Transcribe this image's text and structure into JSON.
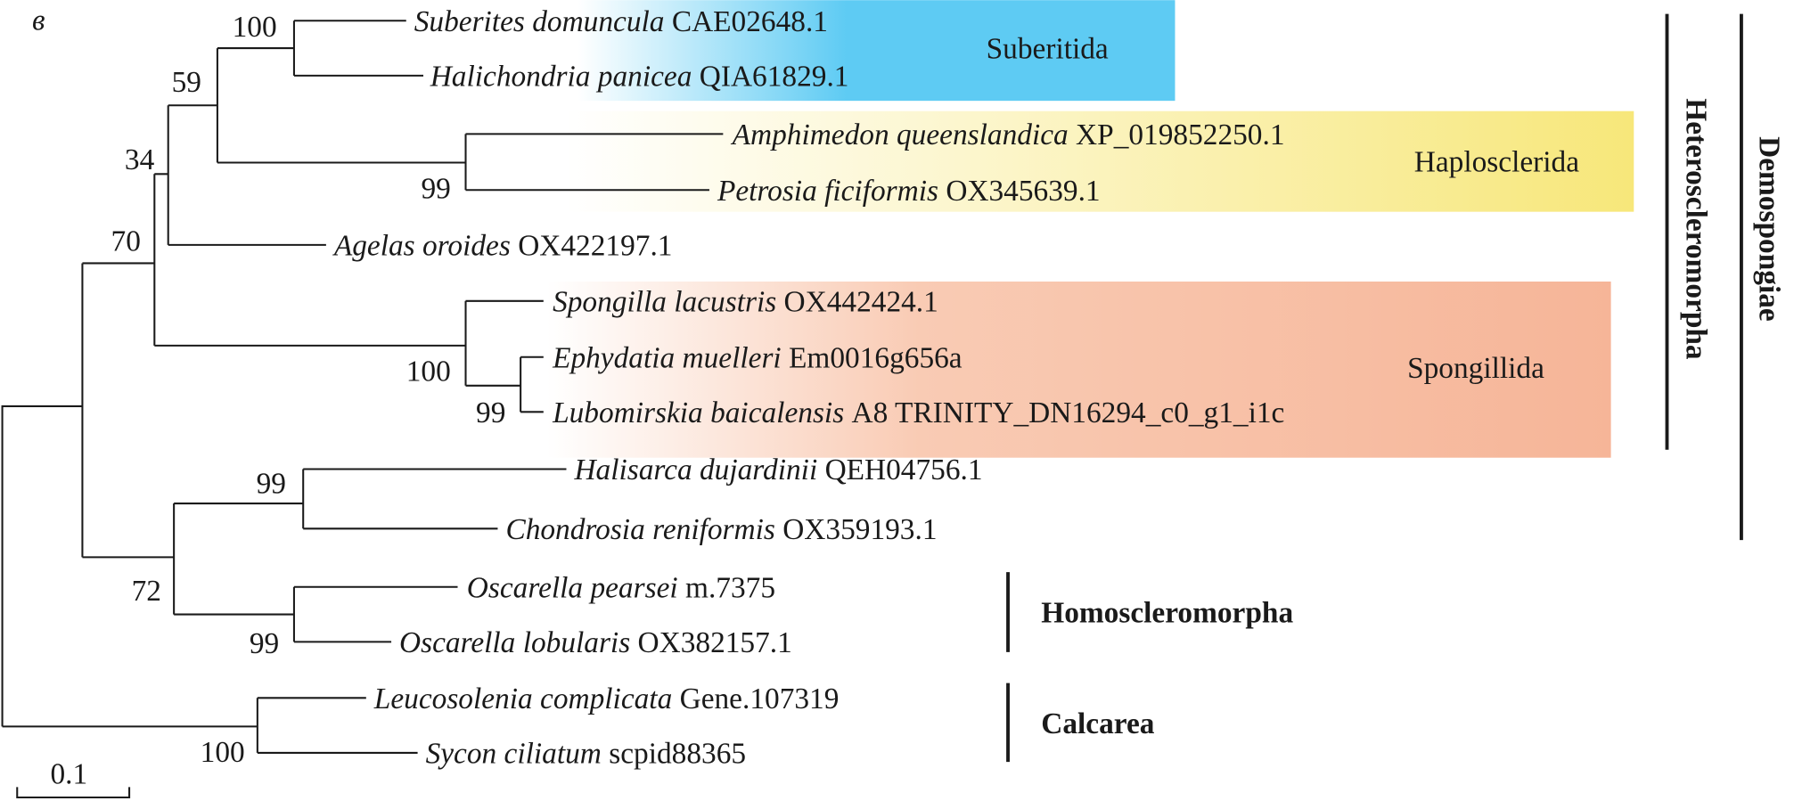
{
  "panel_letter": "в",
  "scale_bar": {
    "label": "0.1",
    "value": 0.1
  },
  "taxa": [
    {
      "species": "Suberites domuncula",
      "accession": "CAE02648.1"
    },
    {
      "species": "Halichondria panicea",
      "accession": "QIA61829.1"
    },
    {
      "species": "Amphimedon queenslandica",
      "accession": "XP_019852250.1"
    },
    {
      "species": "Petrosia ficiformis",
      "accession": "OX345639.1"
    },
    {
      "species": "Agelas oroides",
      "accession": "OX422197.1"
    },
    {
      "species": "Spongilla lacustris",
      "accession": "OX442424.1"
    },
    {
      "species": "Ephydatia muelleri",
      "accession": "Em0016g656a"
    },
    {
      "species": "Lubomirskia baicalensis",
      "accession": "A8 TRINITY_DN16294_c0_g1_i1c"
    },
    {
      "species": "Halisarca dujardinii",
      "accession": "QEH04756.1"
    },
    {
      "species": "Chondrosia reniformis",
      "accession": "OX359193.1"
    },
    {
      "species": "Oscarella pearsei",
      "accession": "m.7375"
    },
    {
      "species": "Oscarella lobularis",
      "accession": "OX382157.1"
    },
    {
      "species": "Leucosolenia complicata",
      "accession": "Gene.107319"
    },
    {
      "species": "Sycon ciliatum",
      "accession": "scpid88365"
    }
  ],
  "bootstrap": {
    "suberitida": "100",
    "suberitida_haplo": "59",
    "n34": "34",
    "n70": "70",
    "haplosclerida": "99",
    "spongillida": "100",
    "ephydatia_lubomirskia": "99",
    "halisarca_chondrosia": "99",
    "n72": "72",
    "oscarella": "99",
    "calcarea": "100"
  },
  "clades": {
    "suberitida": {
      "label": "Suberitida",
      "color": "#5ecbf3"
    },
    "haplosclerida": {
      "label": "Haplosclerida",
      "color": "#f7e77a"
    },
    "spongillida": {
      "label": "Spongillida",
      "color": "#f6b598"
    },
    "heteroscleromorpha": "Heteroscleromorpha",
    "demospongiae": "Demospongiae",
    "homoscleromorpha": "Homoscleromorpha",
    "calcarea": "Calcarea"
  }
}
